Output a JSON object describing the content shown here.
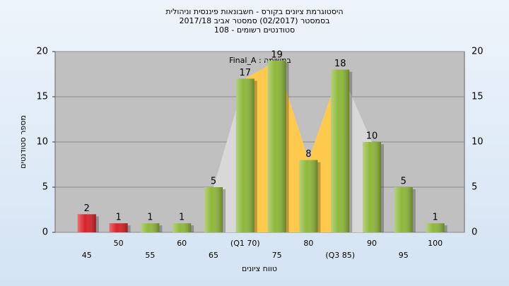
{
  "chart_data": {
    "type": "bar",
    "title": [
      "היסטוגרמת ציונים בקורס - חשבונאות פיננסית וניהולית",
      "בסמסטר (02/2017) סמסטר אביב 2017/18",
      "סטודנטים רשומים - 108"
    ],
    "annotation": "במשימה : Final_A",
    "x_label": "טווח ציונים",
    "y_label": "מספר סטודנטים",
    "categories": [
      "45",
      "50",
      "55",
      "60",
      "65",
      "(Q1 70)",
      "75",
      "80",
      "(Q3 85)",
      "90",
      "95",
      "100"
    ],
    "values": [
      2,
      1,
      1,
      1,
      5,
      17,
      19,
      8,
      18,
      10,
      5,
      1
    ],
    "colors": [
      "#d9232a",
      "#d9232a",
      "#8fb83a",
      "#8fb83a",
      "#8fb83a",
      "#8fb83a",
      "#8fb83a",
      "#8fb83a",
      "#8fb83a",
      "#8fb83a",
      "#8fb83a",
      "#8fb83a"
    ],
    "quartile_color": "#ffc94d",
    "ylim": [
      0,
      20
    ],
    "yticks": [
      0,
      5,
      10,
      15,
      20
    ],
    "grid": true
  }
}
